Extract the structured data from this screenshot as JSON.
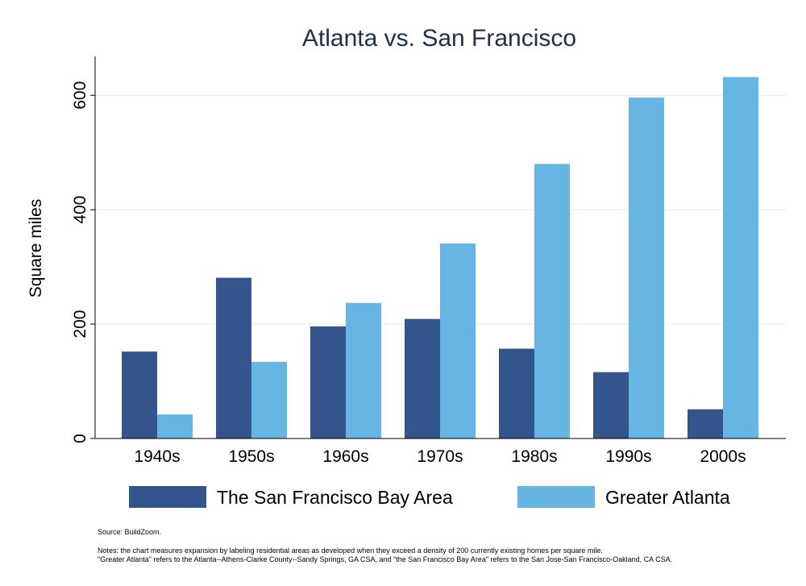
{
  "chart_data": {
    "type": "bar",
    "title": "Atlanta vs. San Francisco",
    "xlabel": "",
    "ylabel": "Square miles",
    "categories": [
      "1940s",
      "1950s",
      "1960s",
      "1970s",
      "1980s",
      "1990s",
      "2000s"
    ],
    "series": [
      {
        "name": "The San Francisco Bay Area",
        "color": "#34558b",
        "values": [
          152,
          281,
          196,
          209,
          157,
          116,
          51
        ]
      },
      {
        "name": "Greater Atlanta",
        "color": "#66b5e3",
        "values": [
          42,
          134,
          237,
          341,
          480,
          596,
          632
        ]
      }
    ],
    "ylim": [
      0,
      668
    ],
    "yticks": [
      0,
      200,
      400,
      600
    ],
    "grid": true,
    "legend": "bottom"
  },
  "notes": {
    "source": "Source: BuildZoom.",
    "line1": "Notes: the chart measures expansion by labeling residential areas as developed when they exceed a density of 200 currently existing homes per square mile.",
    "line2": "\"Greater Atlanta\" refers to the Atlanta--Athens-Clarke County--Sandy Springs, GA CSA, and \"the San Francisco Bay Area\" refers to the San Jose-San Francisco-Oakland, CA CSA."
  }
}
